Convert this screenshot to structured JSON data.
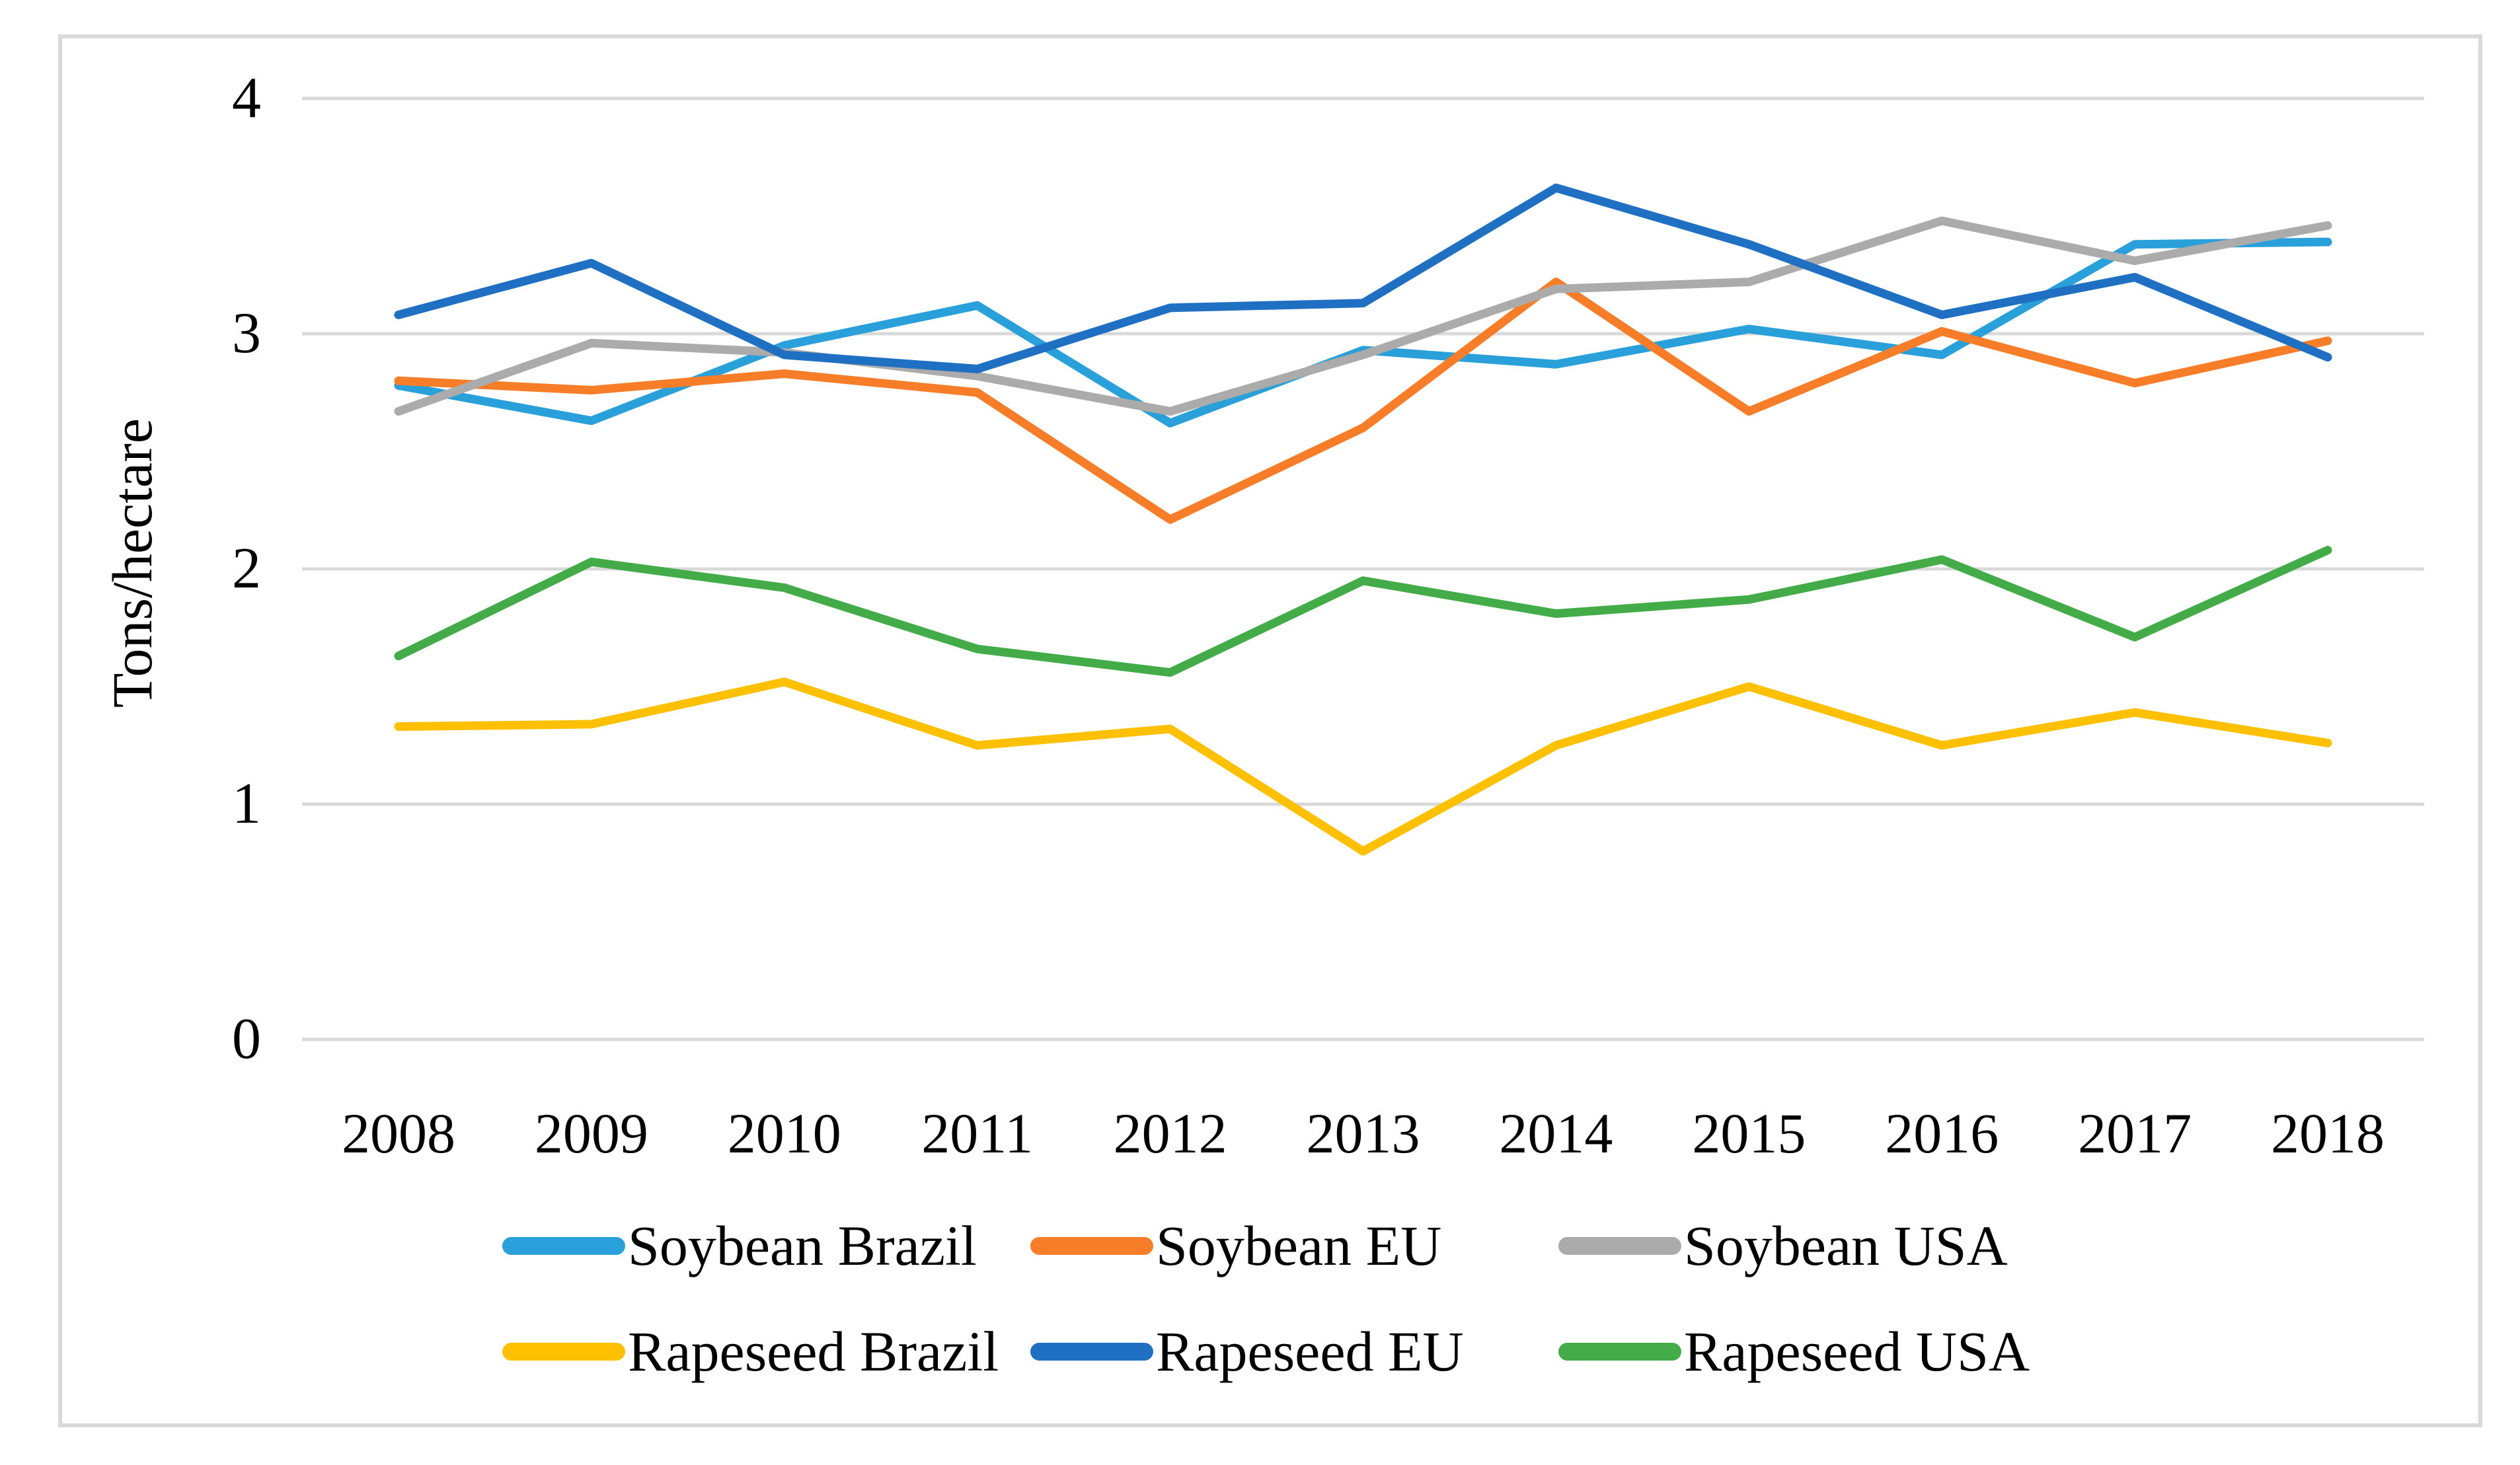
{
  "figure": {
    "background": "#FFFFFF",
    "frame_color": "#D9D9D9",
    "text_color": "#000000"
  },
  "chart_data": {
    "type": "line",
    "title": "",
    "xlabel": "",
    "ylabel": "Tons/hectare",
    "categories": [
      "2008",
      "2009",
      "2010",
      "2011",
      "2012",
      "2013",
      "2014",
      "2015",
      "2016",
      "2017",
      "2018"
    ],
    "ylim": [
      0,
      4
    ],
    "yticks": [
      0,
      1,
      2,
      3,
      4
    ],
    "grid": true,
    "gridline_color": "#D9D9D9",
    "legend_position": "bottom",
    "series": [
      {
        "name": "Soybean Brazil",
        "color": "#29A0DA",
        "values": [
          2.78,
          2.63,
          2.95,
          3.12,
          2.62,
          2.93,
          2.87,
          3.02,
          2.91,
          3.38,
          3.39
        ]
      },
      {
        "name": "Soybean EU",
        "color": "#F87D28",
        "values": [
          2.8,
          2.76,
          2.83,
          2.75,
          2.21,
          2.6,
          3.22,
          2.67,
          3.01,
          2.79,
          2.97
        ]
      },
      {
        "name": "Soybean USA",
        "color": "#ABABAB",
        "values": [
          2.67,
          2.96,
          2.92,
          2.82,
          2.67,
          2.91,
          3.19,
          3.22,
          3.48,
          3.31,
          3.46
        ]
      },
      {
        "name": "Rapeseed Brazil",
        "color": "#FFC000",
        "values": [
          1.33,
          1.34,
          1.52,
          1.25,
          1.32,
          0.8,
          1.25,
          1.5,
          1.25,
          1.39,
          1.26
        ]
      },
      {
        "name": "Rapeseed EU",
        "color": "#1F70C2",
        "values": [
          3.08,
          3.3,
          2.91,
          2.85,
          3.11,
          3.13,
          3.62,
          3.38,
          3.08,
          3.24,
          2.9
        ]
      },
      {
        "name": "Rapeseed USA",
        "color": "#43AC49",
        "values": [
          1.63,
          2.03,
          1.92,
          1.66,
          1.56,
          1.95,
          1.81,
          1.87,
          2.04,
          1.71,
          2.08
        ]
      }
    ]
  }
}
